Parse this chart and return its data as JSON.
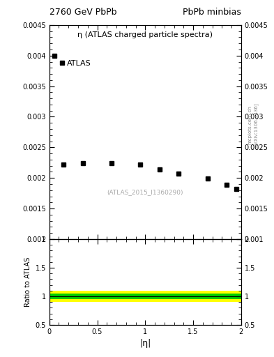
{
  "title_left": "2760 GeV PbPb",
  "title_right": "PbPb minbias",
  "plot_label": "η (ATLAS charged particle spectra)",
  "legend_label": "ATLAS",
  "watermark": "(ATLAS_2015_I1360290)",
  "arxiv_label": "[arXiv:1306.3436]",
  "mcplots_label": "mcplots.cern.ch",
  "xlabel": "|η|",
  "ratio_ylabel": "Ratio to ATLAS",
  "data_x": [
    0.05,
    0.15,
    0.35,
    0.65,
    0.95,
    1.15,
    1.35,
    1.65,
    1.85,
    1.95
  ],
  "data_y": [
    0.004,
    0.00222,
    0.00224,
    0.00224,
    0.00222,
    0.00214,
    0.00207,
    0.00199,
    0.00189,
    0.00182
  ],
  "xlim": [
    0,
    2.0
  ],
  "ylim": [
    0.001,
    0.0045
  ],
  "green_band": 0.05,
  "yellow_band": 0.1,
  "band_color_green": "#00cc00",
  "band_color_yellow": "#ffff00",
  "marker_color": "black",
  "marker_style": "s",
  "marker_size": 4,
  "yticks": [
    0.001,
    0.0015,
    0.002,
    0.0025,
    0.003,
    0.0035,
    0.004,
    0.0045
  ],
  "ytick_labels": [
    "0.001",
    "0.0015",
    "0.002",
    "0.0025",
    "0.003",
    "0.0035",
    "0.004",
    "0.0045"
  ],
  "xticks": [
    0,
    0.5,
    1.0,
    1.5,
    2.0
  ],
  "xtick_labels": [
    "0",
    "0.5",
    "1",
    "1.5",
    "2"
  ],
  "ratio_yticks": [
    0.5,
    1.0,
    1.5,
    2.0
  ],
  "ratio_ytick_labels": [
    "0.5",
    "1",
    "1.5",
    "2"
  ],
  "background_color": "#ffffff"
}
